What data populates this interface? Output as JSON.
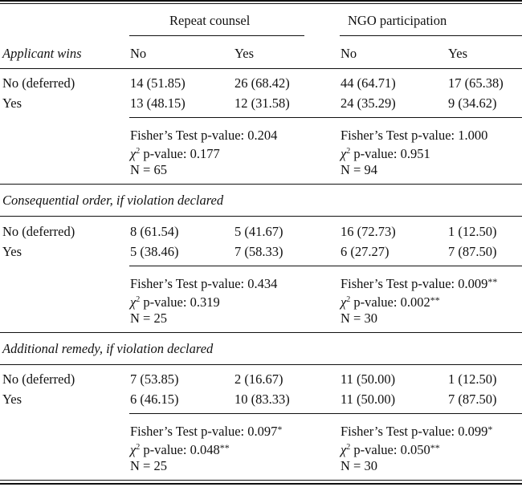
{
  "header": {
    "group_repeat": "Repeat counsel",
    "group_ngo": "NGO participation",
    "row_label": "Applicant wins",
    "cols": [
      "No",
      "Yes",
      "No",
      "Yes"
    ]
  },
  "sections": [
    {
      "rows": [
        {
          "label": "No (deferred)",
          "cells": [
            "14 (51.85)",
            "26 (68.42)",
            "44 (64.71)",
            "17 (65.38)"
          ]
        },
        {
          "label": "Yes",
          "cells": [
            "13 (48.15)",
            "12 (31.58)",
            "24 (35.29)",
            "9 (34.62)"
          ]
        }
      ],
      "stats": [
        {
          "fisher": "Fisher’s Test p-value: 0.204",
          "fisher_stars": "",
          "chi_symbol": "χ",
          "chi_sup": "2",
          "chi": " p-value: 0.177",
          "chi_stars": "",
          "n": "N = 65"
        },
        {
          "fisher": "Fisher’s Test p-value: 1.000",
          "fisher_stars": "",
          "chi_symbol": "χ",
          "chi_sup": "2",
          "chi": " p-value: 0.951",
          "chi_stars": "",
          "n": "N = 94"
        }
      ]
    },
    {
      "title": "Consequential order, if violation declared",
      "rows": [
        {
          "label": "No (deferred)",
          "cells": [
            "8 (61.54)",
            "5 (41.67)",
            "16 (72.73)",
            "1 (12.50)"
          ]
        },
        {
          "label": "Yes",
          "cells": [
            "5 (38.46)",
            "7 (58.33)",
            "6 (27.27)",
            "7 (87.50)"
          ]
        }
      ],
      "stats": [
        {
          "fisher": "Fisher’s Test p-value: 0.434",
          "fisher_stars": "",
          "chi_symbol": "χ",
          "chi_sup": "2",
          "chi": " p-value: 0.319",
          "chi_stars": "",
          "n": "N = 25"
        },
        {
          "fisher": "Fisher’s Test p-value: 0.009",
          "fisher_stars": "**",
          "chi_symbol": "χ",
          "chi_sup": "2",
          "chi": " p-value: 0.002",
          "chi_stars": "**",
          "n": "N = 30"
        }
      ]
    },
    {
      "title": "Additional remedy, if violation declared",
      "rows": [
        {
          "label": "No (deferred)",
          "cells": [
            "7 (53.85)",
            "2 (16.67)",
            "11 (50.00)",
            "1 (12.50)"
          ]
        },
        {
          "label": "Yes",
          "cells": [
            "6 (46.15)",
            "10 (83.33)",
            "11 (50.00)",
            "7 (87.50)"
          ]
        }
      ],
      "stats": [
        {
          "fisher": "Fisher’s Test p-value: 0.097",
          "fisher_stars": "*",
          "chi_symbol": "χ",
          "chi_sup": "2",
          "chi": " p-value: 0.048",
          "chi_stars": "**",
          "n": "N = 25"
        },
        {
          "fisher": "Fisher’s Test p-value: 0.099",
          "fisher_stars": "*",
          "chi_symbol": "χ",
          "chi_sup": "2",
          "chi": " p-value: 0.050",
          "chi_stars": "**",
          "n": "N = 30"
        }
      ]
    }
  ]
}
